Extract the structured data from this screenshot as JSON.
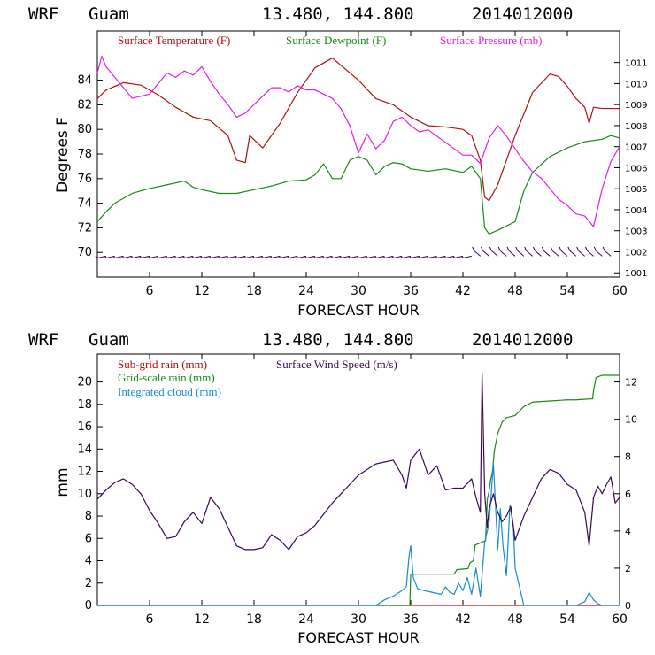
{
  "colors": {
    "temperature": "#b01010",
    "dewpoint": "#1a8a1a",
    "pressure": "#e020e0",
    "wind": "#3a0a50",
    "subgrid_rain": "#b01010",
    "gridscale_rain": "#1a8a1a",
    "cloud": "#1a8ad8",
    "axis": "#000000"
  },
  "panels": [
    {
      "header": {
        "model": "WRF",
        "location": "Guam",
        "coords": "13.480, 144.800",
        "init": "2014012000"
      },
      "xlabel": "FORECAST HOUR",
      "ylabel": "Degrees F",
      "legend": [
        "Surface Temperature (F)",
        "Surface Dewpoint (F)",
        "Surface Pressure (mb)"
      ]
    },
    {
      "header": {
        "model": "WRF",
        "location": "Guam",
        "coords": "13.480, 144.800",
        "init": "2014012000"
      },
      "xlabel": "FORECAST HOUR",
      "ylabel": "mm",
      "legend": [
        "Sub-grid rain (mm)",
        "Grid-scale rain (mm)",
        "Integrated cloud (mm)",
        "Surface Wind Speed (m/s)"
      ]
    }
  ],
  "chart_data": [
    {
      "type": "line",
      "xlabel": "FORECAST HOUR",
      "ylabel": "Degrees F",
      "xlim": [
        0,
        60
      ],
      "x_ticks": [
        6,
        12,
        18,
        24,
        30,
        36,
        42,
        48,
        54,
        60
      ],
      "ylim": [
        68,
        88
      ],
      "y_ticks": [
        70,
        72,
        74,
        76,
        78,
        80,
        82,
        84
      ],
      "y2lim": [
        1000.8,
        1012.5
      ],
      "y2_ticks": [
        1001,
        1002,
        1003,
        1004,
        1005,
        1006,
        1007,
        1008,
        1009,
        1010,
        1011
      ],
      "series": [
        {
          "name": "Surface Temperature (F)",
          "axis": "left",
          "color": "temperature",
          "x": [
            0,
            1,
            3,
            5,
            7,
            9,
            11,
            13,
            15,
            16,
            17,
            17.5,
            19,
            21,
            23,
            25,
            27,
            28,
            30,
            32,
            34,
            36,
            38,
            40,
            42,
            43,
            44,
            44.5,
            45,
            46,
            47,
            48,
            50,
            52,
            53,
            54,
            55,
            56,
            56.5,
            57,
            58,
            59,
            60
          ],
          "y": [
            82.5,
            83.2,
            83.8,
            83.6,
            82.8,
            81.8,
            81.0,
            80.7,
            79.5,
            77.5,
            77.3,
            79.5,
            78.5,
            80.5,
            83.0,
            85.0,
            85.8,
            85.2,
            84.0,
            82.5,
            82.0,
            81.0,
            80.3,
            80.2,
            80.0,
            79.5,
            77.5,
            74.5,
            74.2,
            75.5,
            77.5,
            79.5,
            83.0,
            84.5,
            84.3,
            83.5,
            82.5,
            81.8,
            80.5,
            81.8,
            81.7,
            81.7,
            81.7
          ]
        },
        {
          "name": "Surface Dewpoint (F)",
          "axis": "left",
          "color": "dewpoint",
          "x": [
            0,
            1,
            2,
            4,
            6,
            8,
            10,
            11,
            12,
            14,
            16,
            18,
            20,
            22,
            24,
            25,
            26,
            27,
            28,
            29,
            30,
            31,
            32,
            33,
            34,
            35,
            36,
            38,
            40,
            42,
            43,
            44,
            44.5,
            45,
            46,
            48,
            49,
            50,
            52,
            54,
            56,
            58,
            59,
            60
          ],
          "y": [
            72.5,
            73.3,
            74.0,
            74.8,
            75.2,
            75.5,
            75.8,
            75.3,
            75.1,
            74.8,
            74.8,
            75.1,
            75.4,
            75.8,
            75.9,
            76.3,
            77.2,
            76.0,
            76.0,
            77.5,
            77.8,
            77.5,
            76.3,
            77.0,
            77.3,
            77.2,
            76.8,
            76.6,
            76.8,
            76.5,
            77.0,
            76.0,
            72.0,
            71.5,
            71.8,
            72.5,
            75.0,
            76.5,
            77.8,
            78.5,
            79.0,
            79.2,
            79.5,
            79.3
          ]
        },
        {
          "name": "Surface Pressure (mb)",
          "axis": "right",
          "color": "pressure",
          "x": [
            0,
            0.5,
            1,
            2,
            3,
            4,
            5,
            6,
            7,
            8,
            9,
            10,
            11,
            12,
            13,
            14,
            15,
            16,
            17,
            18,
            19,
            20,
            21,
            22,
            23,
            24,
            25,
            26,
            27,
            28,
            29,
            30,
            31,
            32,
            33,
            34,
            35,
            36,
            37,
            38,
            39,
            40,
            41,
            42,
            43,
            44,
            45,
            46,
            47,
            48,
            49,
            50,
            51,
            52,
            53,
            54,
            55,
            56,
            57,
            58,
            59,
            60
          ],
          "y": [
            1010.5,
            1011.3,
            1010.8,
            1010.3,
            1009.8,
            1009.3,
            1009.4,
            1009.5,
            1010.0,
            1010.5,
            1010.3,
            1010.6,
            1010.4,
            1010.8,
            1010.1,
            1009.5,
            1009.0,
            1008.4,
            1008.6,
            1009.0,
            1009.4,
            1009.8,
            1009.8,
            1009.6,
            1009.9,
            1009.7,
            1009.7,
            1009.5,
            1009.3,
            1008.8,
            1008.0,
            1006.7,
            1007.6,
            1006.9,
            1007.3,
            1008.2,
            1008.4,
            1008.0,
            1007.7,
            1007.8,
            1007.5,
            1007.2,
            1006.9,
            1006.6,
            1006.6,
            1006.2,
            1007.4,
            1008.0,
            1007.5,
            1006.9,
            1006.3,
            1005.8,
            1005.5,
            1005.0,
            1004.5,
            1004.2,
            1003.8,
            1003.7,
            1003.2,
            1005.0,
            1006.3,
            1007.0
          ]
        }
      ],
      "wind_barbs": {
        "y": 69.7,
        "hours": [
          1,
          2,
          3,
          4,
          5,
          6,
          7,
          8,
          9,
          10,
          11,
          12,
          13,
          14,
          15,
          16,
          17,
          18,
          19,
          20,
          21,
          22,
          23,
          24,
          25,
          26,
          27,
          28,
          29,
          30,
          31,
          32,
          33,
          34,
          35,
          36,
          37,
          38,
          39,
          40,
          41,
          42,
          43,
          44,
          45,
          46,
          47,
          48,
          49,
          50,
          51,
          52,
          53,
          54,
          55,
          56,
          57,
          58,
          59
        ]
      }
    },
    {
      "type": "line",
      "xlabel": "FORECAST HOUR",
      "ylabel": "mm",
      "xlim": [
        0,
        60
      ],
      "x_ticks": [
        6,
        12,
        18,
        24,
        30,
        36,
        42,
        48,
        54,
        60
      ],
      "ylim": [
        0,
        22.5
      ],
      "y_ticks": [
        0,
        2,
        4,
        6,
        8,
        10,
        12,
        14,
        16,
        18,
        20
      ],
      "y2lim": [
        0,
        13.5
      ],
      "y2_ticks": [
        0,
        2,
        4,
        6,
        8,
        10,
        12
      ],
      "series": [
        {
          "name": "Sub-grid rain (mm)",
          "axis": "left",
          "color": "subgrid_rain",
          "x": [
            0,
            60
          ],
          "y": [
            0,
            0
          ]
        },
        {
          "name": "Grid-scale rain (mm)",
          "axis": "left",
          "color": "gridscale_rain",
          "x": [
            0,
            35.9,
            36,
            41,
            41.3,
            42.6,
            42.8,
            43.2,
            43.4,
            44.6,
            44.8,
            45.0,
            45.2,
            45.4,
            45.6,
            46.0,
            46.5,
            47.0,
            48,
            48.5,
            49,
            50,
            52,
            54,
            55,
            56.9,
            57,
            57.3,
            58,
            60
          ],
          "y": [
            0,
            0,
            2.8,
            2.8,
            3.2,
            3.3,
            3.8,
            4.0,
            5.4,
            5.8,
            9.5,
            10.2,
            11.3,
            12.0,
            13.8,
            15.4,
            16.4,
            16.8,
            17.0,
            17.4,
            17.8,
            18.2,
            18.3,
            18.4,
            18.4,
            18.5,
            19.2,
            20.4,
            20.6,
            20.6
          ]
        },
        {
          "name": "Integrated cloud (mm)",
          "axis": "right",
          "color": "cloud",
          "x": [
            0,
            32,
            33,
            34,
            35,
            35.5,
            35.8,
            36,
            36.3,
            36.8,
            37.5,
            38.5,
            39.5,
            40,
            40.5,
            41,
            41.5,
            42,
            42.5,
            43,
            43.5,
            44,
            44.5,
            45,
            45.5,
            46,
            46.3,
            46.6,
            47,
            47.4,
            47.8,
            48,
            48.5,
            49,
            55,
            56,
            56.5,
            57,
            57.5,
            58,
            60
          ],
          "y": [
            0,
            0,
            0.3,
            0.5,
            0.8,
            1.0,
            2.6,
            3.2,
            1.5,
            0.9,
            0.8,
            0.7,
            0.6,
            1.0,
            0.7,
            0.6,
            1.2,
            0.8,
            1.5,
            0.6,
            2.0,
            0.5,
            3.4,
            4.4,
            7.6,
            3.0,
            5.2,
            3.2,
            1.6,
            5.4,
            4.2,
            2.0,
            1.0,
            0,
            0,
            0.2,
            0.7,
            0.3,
            0.1,
            0,
            0
          ]
        },
        {
          "name": "Surface Wind Speed (m/s)",
          "axis": "right",
          "color": "wind",
          "x": [
            0,
            1,
            2,
            3,
            4,
            5,
            6,
            7,
            8,
            9,
            10,
            11,
            12,
            13,
            14,
            15,
            16,
            17,
            18,
            19,
            20,
            21,
            22,
            23,
            24,
            25,
            26,
            27,
            28,
            29,
            30,
            31,
            32,
            33,
            34,
            35,
            35.5,
            36,
            37,
            38,
            39,
            40,
            41,
            42,
            43,
            43.5,
            44,
            44.2,
            44.5,
            44.8,
            45,
            45.5,
            46,
            46.5,
            47,
            47.5,
            48,
            49,
            50,
            51,
            52,
            53,
            54,
            55,
            56,
            56.5,
            57,
            57.5,
            58,
            58.5,
            59,
            59.5,
            60
          ],
          "y": [
            5.7,
            6.2,
            6.6,
            6.8,
            6.5,
            6.0,
            5.1,
            4.4,
            3.6,
            3.7,
            4.5,
            5.0,
            4.4,
            5.8,
            5.2,
            4.2,
            3.2,
            3.0,
            3.0,
            3.1,
            3.8,
            3.5,
            3.0,
            3.7,
            3.9,
            4.3,
            4.9,
            5.5,
            6.0,
            6.5,
            7.0,
            7.3,
            7.6,
            7.7,
            7.8,
            7.0,
            6.3,
            7.8,
            8.4,
            7.0,
            7.5,
            6.2,
            6.3,
            6.3,
            6.8,
            5.8,
            5.0,
            12.5,
            6.0,
            4.2,
            5.2,
            6.0,
            5.0,
            4.5,
            4.8,
            5.3,
            3.5,
            4.8,
            5.8,
            6.8,
            7.3,
            7.1,
            6.5,
            6.2,
            5.0,
            3.2,
            5.8,
            6.4,
            6.0,
            6.5,
            6.9,
            5.5,
            5.8
          ]
        }
      ]
    }
  ]
}
